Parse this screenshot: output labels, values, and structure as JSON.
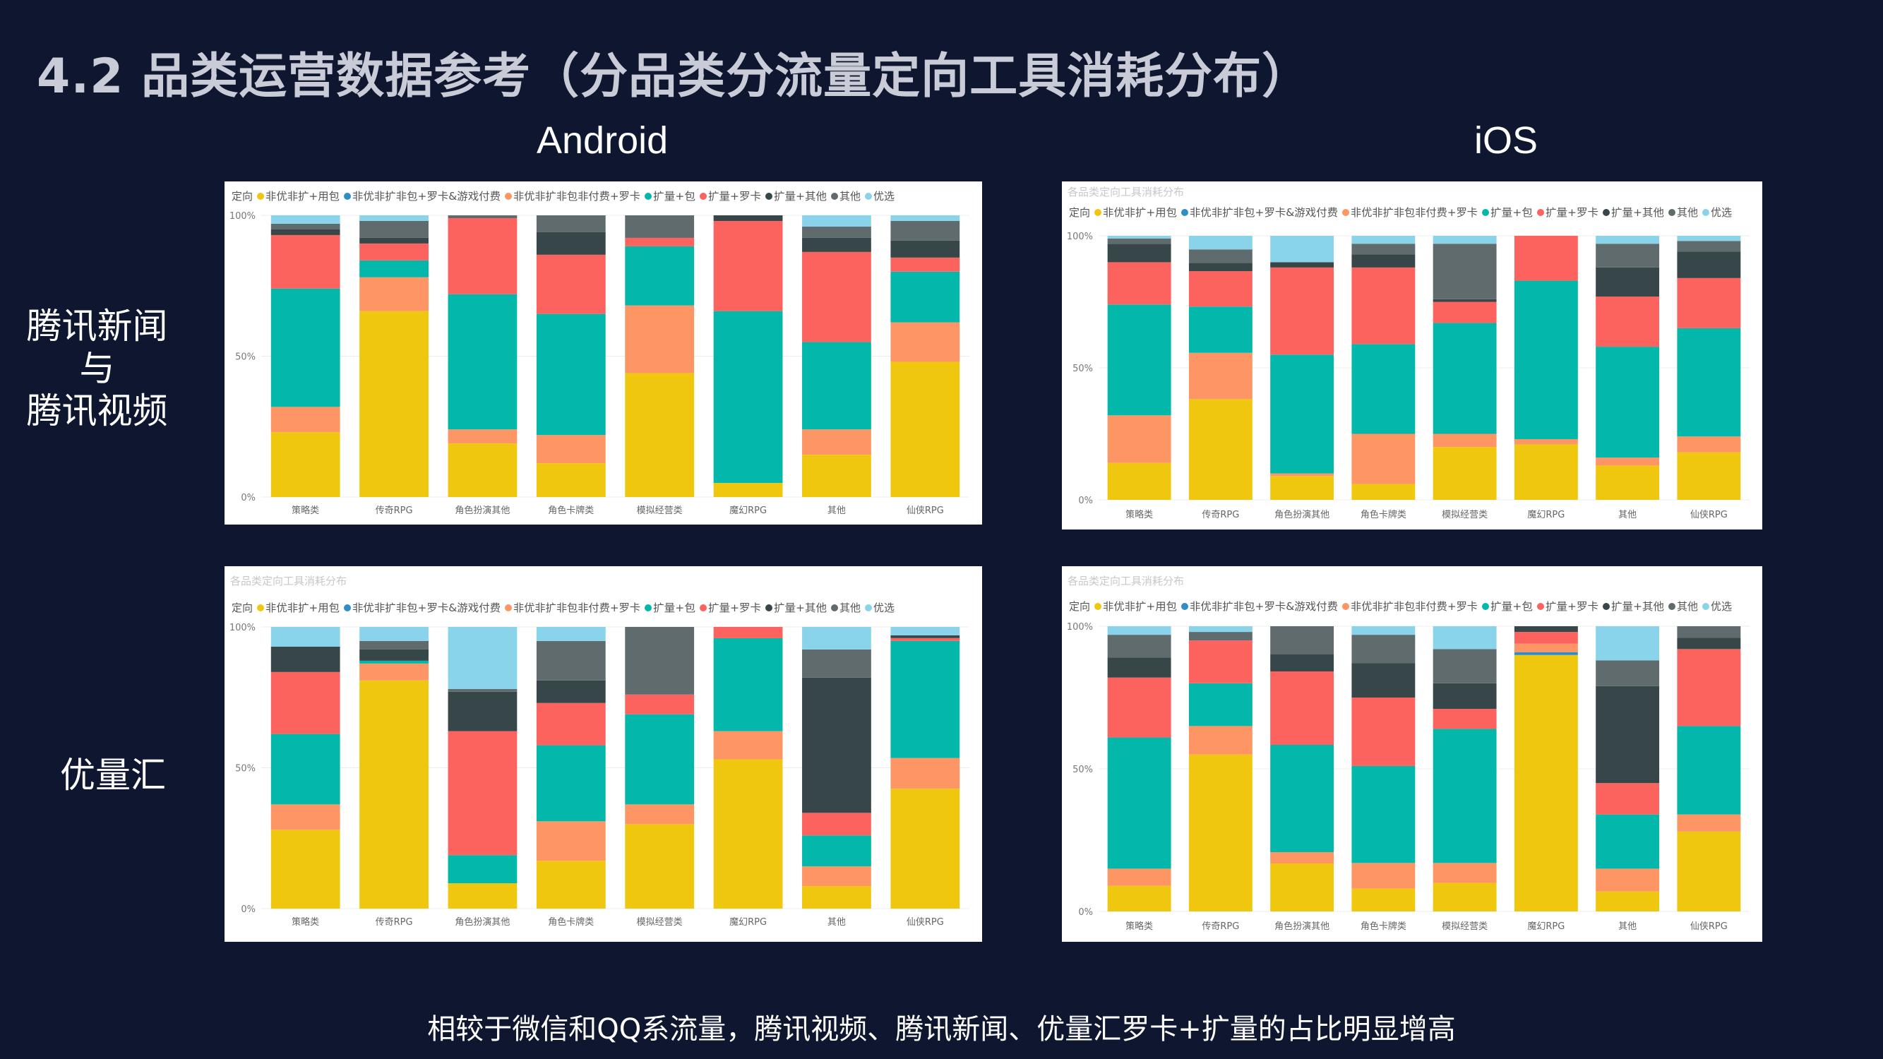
{
  "slide": {
    "title": "4.2 品类运营数据参考（分品类分流量定向工具消耗分布）",
    "col_android": "Android",
    "col_ios": "iOS",
    "row1_lines": [
      "腾讯新闻",
      "与",
      "腾讯视频"
    ],
    "row2": "优量汇",
    "footer": "相较于微信和QQ系流量，腾讯视频、腾讯新闻、优量汇罗卡+扩量的占比明显增高"
  },
  "panel_subtitle": "各品类定向工具消耗分布",
  "legend_title": "定向",
  "colors": [
    "#f0c70f",
    "#2f8fc4",
    "#fd9565",
    "#03b8aa",
    "#fc625e",
    "#374649",
    "#606b6d",
    "#8ad4eb"
  ],
  "chart_data": [
    {
      "type": "bar",
      "stacked": "percent",
      "platform": "Android",
      "traffic": "腾讯新闻与腾讯视频",
      "title": "",
      "categories": [
        "策略类",
        "传奇RPG",
        "角色扮演其他",
        "角色卡牌类",
        "模拟经营类",
        "魔幻RPG",
        "其他",
        "仙侠RPG"
      ],
      "ylim": [
        0,
        100
      ],
      "yticks": [
        "0%",
        "50%",
        "100%"
      ],
      "series": [
        {
          "name": "非优非扩+用包",
          "values": [
            23,
            66,
            19,
            12,
            44,
            5,
            15,
            48
          ]
        },
        {
          "name": "非优非扩非包+罗卡&游戏付费",
          "values": [
            0,
            0,
            0,
            0,
            0,
            0,
            0,
            0
          ]
        },
        {
          "name": "非优非扩非包非付费+罗卡",
          "values": [
            9,
            12,
            5,
            10,
            24,
            0,
            9,
            14
          ]
        },
        {
          "name": "扩量+包",
          "values": [
            42,
            6,
            48,
            43,
            21,
            61,
            31,
            18
          ]
        },
        {
          "name": "扩量+罗卡",
          "values": [
            19,
            6,
            27,
            21,
            3,
            32,
            32,
            5
          ]
        },
        {
          "name": "扩量+其他",
          "values": [
            2,
            2,
            0,
            8,
            0,
            2,
            5,
            6
          ]
        },
        {
          "name": "其他",
          "values": [
            2,
            6,
            1,
            6,
            8,
            0,
            4,
            7
          ]
        },
        {
          "name": "优选",
          "values": [
            3,
            2,
            0,
            0,
            0,
            0,
            4,
            2
          ]
        }
      ]
    },
    {
      "type": "bar",
      "stacked": "percent",
      "platform": "iOS",
      "traffic": "腾讯新闻与腾讯视频",
      "title": "各品类定向工具消耗分布",
      "categories": [
        "策略类",
        "传奇RPG",
        "角色扮演其他",
        "角色卡牌类",
        "模拟经营类",
        "魔幻RPG",
        "其他",
        "仙侠RPG"
      ],
      "ylim": [
        0,
        100
      ],
      "yticks": [
        "0%",
        "50%",
        "100%"
      ],
      "series": [
        {
          "name": "非优非扩+用包",
          "values": [
            14,
            37,
            9,
            6,
            20,
            21,
            13,
            18
          ]
        },
        {
          "name": "非优非扩非包+罗卡&游戏付费",
          "values": [
            0,
            0,
            0,
            0,
            0,
            0,
            0,
            0
          ]
        },
        {
          "name": "非优非扩非包非付费+罗卡",
          "values": [
            18,
            17,
            1,
            19,
            5,
            2,
            3,
            6
          ]
        },
        {
          "name": "扩量+包",
          "values": [
            42,
            17,
            45,
            34,
            42,
            60,
            42,
            41
          ]
        },
        {
          "name": "扩量+罗卡",
          "values": [
            16,
            13,
            33,
            29,
            8,
            17,
            19,
            19
          ]
        },
        {
          "name": "扩量+其他",
          "values": [
            7,
            3,
            2,
            5,
            1,
            0,
            11,
            10
          ]
        },
        {
          "name": "其他",
          "values": [
            2,
            5,
            0,
            4,
            21,
            0,
            9,
            4
          ]
        },
        {
          "name": "优选",
          "values": [
            1,
            5,
            10,
            3,
            3,
            0,
            3,
            2
          ]
        }
      ]
    },
    {
      "type": "bar",
      "stacked": "percent",
      "platform": "Android",
      "traffic": "优量汇",
      "title": "各品类定向工具消耗分布",
      "categories": [
        "策略类",
        "传奇RPG",
        "角色扮演其他",
        "角色卡牌类",
        "模拟经营类",
        "魔幻RPG",
        "其他",
        "仙侠RPG"
      ],
      "ylim": [
        0,
        100
      ],
      "yticks": [
        "0%",
        "50%",
        "100%"
      ],
      "series": [
        {
          "name": "非优非扩+用包",
          "values": [
            28,
            81,
            9,
            17,
            30,
            53,
            8,
            43
          ]
        },
        {
          "name": "非优非扩非包+罗卡&游戏付费",
          "values": [
            0,
            0,
            0,
            0,
            0,
            0,
            0,
            0
          ]
        },
        {
          "name": "非优非扩非包非付费+罗卡",
          "values": [
            9,
            6,
            0,
            14,
            7,
            10,
            7,
            11
          ]
        },
        {
          "name": "扩量+包",
          "values": [
            25,
            1,
            10,
            27,
            32,
            33,
            11,
            42
          ]
        },
        {
          "name": "扩量+罗卡",
          "values": [
            22,
            0,
            44,
            15,
            7,
            4,
            8,
            1
          ]
        },
        {
          "name": "扩量+其他",
          "values": [
            9,
            4,
            14,
            8,
            0,
            0,
            48,
            1
          ]
        },
        {
          "name": "其他",
          "values": [
            0,
            3,
            1,
            14,
            24,
            0,
            10,
            0
          ]
        },
        {
          "name": "优选",
          "values": [
            7,
            5,
            22,
            5,
            0,
            0,
            8,
            3
          ]
        }
      ]
    },
    {
      "type": "bar",
      "stacked": "percent",
      "platform": "iOS",
      "traffic": "优量汇",
      "title": "各品类定向工具消耗分布",
      "categories": [
        "策略类",
        "传奇RPG",
        "角色扮演其他",
        "角色卡牌类",
        "模拟经营类",
        "魔幻RPG",
        "其他",
        "仙侠RPG"
      ],
      "ylim": [
        0,
        100
      ],
      "yticks": [
        "0%",
        "50%",
        "100%"
      ],
      "series": [
        {
          "name": "非优非扩+用包",
          "values": [
            9,
            55,
            17,
            8,
            10,
            89,
            7,
            28
          ]
        },
        {
          "name": "非优非扩非包+罗卡&游戏付费",
          "values": [
            0,
            0,
            0,
            0,
            0,
            1,
            0,
            0
          ]
        },
        {
          "name": "非优非扩非包非付费+罗卡",
          "values": [
            6,
            10,
            4,
            9,
            7,
            3,
            8,
            6
          ]
        },
        {
          "name": "扩量+包",
          "values": [
            46,
            15,
            38,
            34,
            47,
            0,
            19,
            31
          ]
        },
        {
          "name": "扩量+罗卡",
          "values": [
            21,
            15,
            26,
            24,
            7,
            4,
            11,
            27
          ]
        },
        {
          "name": "扩量+其他",
          "values": [
            7,
            0,
            6,
            12,
            9,
            2,
            34,
            4
          ]
        },
        {
          "name": "其他",
          "values": [
            8,
            3,
            10,
            10,
            12,
            0,
            9,
            4
          ]
        },
        {
          "name": "优选",
          "values": [
            3,
            2,
            0,
            3,
            8,
            0,
            12,
            0
          ]
        }
      ]
    }
  ]
}
